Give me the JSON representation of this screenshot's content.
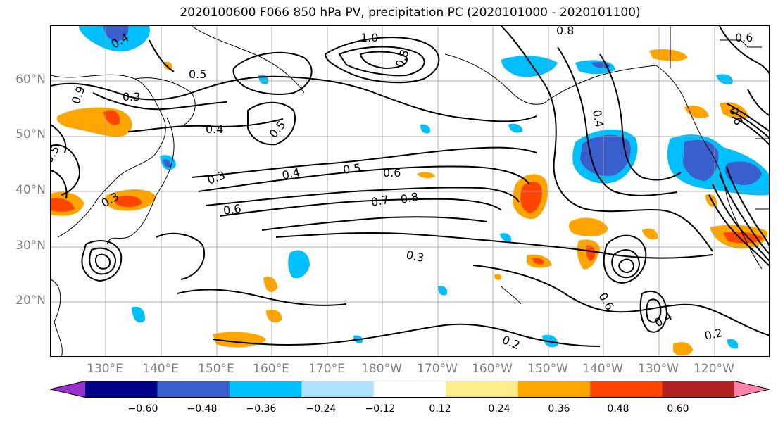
{
  "title": "2020100600 F066 850 hPa PV, precipitation PC (2020101000 - 2020101100)",
  "lat_labels": [
    "60°N",
    "50°N",
    "40°N",
    "30°N",
    "20°N"
  ],
  "lon_labels": [
    "130°E",
    "140°E",
    "150°E",
    "160°E",
    "170°E",
    "180°W",
    "170°W",
    "160°W",
    "150°W",
    "140°W",
    "130°W",
    "120°W"
  ],
  "contour_labels": [
    "1.0",
    "0.8",
    "0.5",
    "0.3",
    "0.4",
    "0.5",
    "0.3",
    "0.4",
    "0.5",
    "0.6",
    "0.6",
    "0.7",
    "0.8",
    "0.3",
    "0.4",
    "0.6",
    "0.2",
    "0.4",
    "0.2",
    "0.3",
    "0.5",
    "0.8",
    "0.6",
    "0.4",
    "0.6",
    "0.9"
  ],
  "colorbar": {
    "tick_labels": [
      "−0.60",
      "−0.48",
      "−0.36",
      "−0.24",
      "−0.12",
      "0.12",
      "0.24",
      "0.36",
      "0.48",
      "0.60"
    ],
    "colors": [
      "#9932cc",
      "#00008b",
      "#3a5fcd",
      "#00bfff",
      "#b0e2ff",
      "#ffffff",
      "#ffec8b",
      "#ffa500",
      "#ff4500",
      "#b22222",
      "#ff82ab"
    ]
  },
  "colors": {
    "contour": "#000000",
    "coast": "#000000",
    "grid": "#a0a0a0",
    "axis_label": "#808080"
  }
}
